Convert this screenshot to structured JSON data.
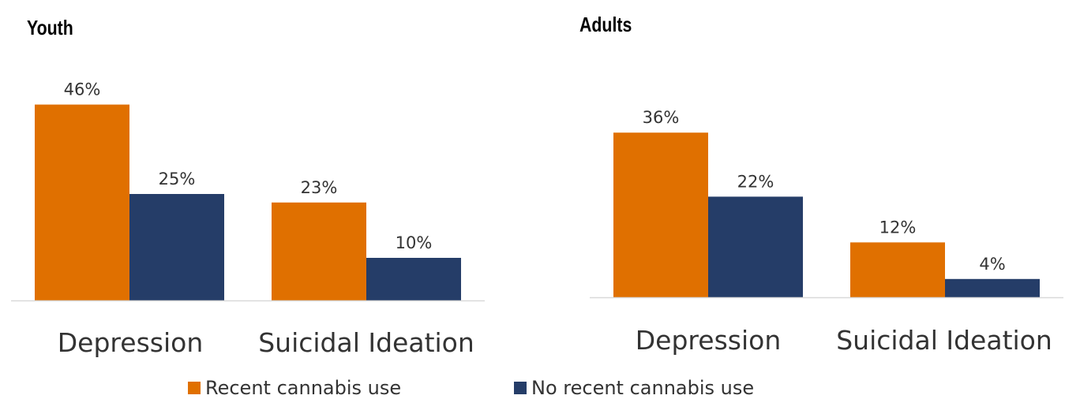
{
  "colors": {
    "recent": "#E07000",
    "no_recent": "#253D68",
    "axis": "#d9d9d9"
  },
  "legend": {
    "recent": "Recent cannabis use",
    "no_recent": "No recent cannabis use"
  },
  "chart_data": [
    {
      "type": "bar",
      "title": "Youth",
      "categories": [
        "Depression",
        "Suicidal Ideation"
      ],
      "series": [
        {
          "name": "Recent cannabis use",
          "values": [
            46,
            23
          ],
          "labels": [
            "46%",
            "23%"
          ]
        },
        {
          "name": "No recent cannabis use",
          "values": [
            25,
            10
          ],
          "labels": [
            "25%",
            "10%"
          ]
        }
      ],
      "legend": "bottom"
    },
    {
      "type": "bar",
      "title": "Adults",
      "categories": [
        "Depression",
        "Suicidal Ideation"
      ],
      "series": [
        {
          "name": "Recent cannabis use",
          "values": [
            36,
            12
          ],
          "labels": [
            "36%",
            "12%"
          ]
        },
        {
          "name": "No recent cannabis use",
          "values": [
            22,
            4
          ],
          "labels": [
            "22%",
            "4%"
          ]
        }
      ],
      "legend": "bottom"
    }
  ]
}
